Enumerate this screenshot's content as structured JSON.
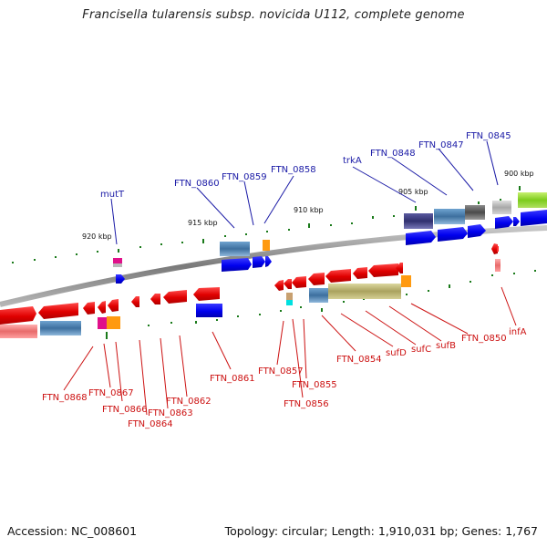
{
  "title": "Francisella tularensis subsp. novicida U112, complete genome",
  "accession_text": "Accession: NC_008601",
  "topology_text": "Topology: circular; Length: 1,910,031 bp; Genes: 1,767",
  "scale_labels": [
    "900 kbp",
    "905 kbp",
    "910 kbp",
    "915 kbp",
    "920 kbp"
  ],
  "forward_labels": [
    "mutT",
    "FTN_0860",
    "FTN_0859",
    "FTN_0858",
    "trkA",
    "FTN_0848",
    "FTN_0847",
    "FTN_0845"
  ],
  "reverse_labels": [
    "FTN_0868",
    "FTN_0867",
    "FTN_0866",
    "FTN_0864",
    "FTN_0863",
    "FTN_0862",
    "FTN_0861",
    "FTN_0857",
    "FTN_0855",
    "FTN_0856",
    "FTN_0854",
    "sufD",
    "sufC",
    "sufB",
    "FTN_0850",
    "infA"
  ],
  "colors": {
    "forward_label": "#1a1aa6",
    "reverse_label": "#cc1111",
    "cds_forward": "#0000ee",
    "cds_reverse": "#ee0000",
    "scale_tick": "#1a7a1a",
    "backbone": "#8a8a8a"
  }
}
